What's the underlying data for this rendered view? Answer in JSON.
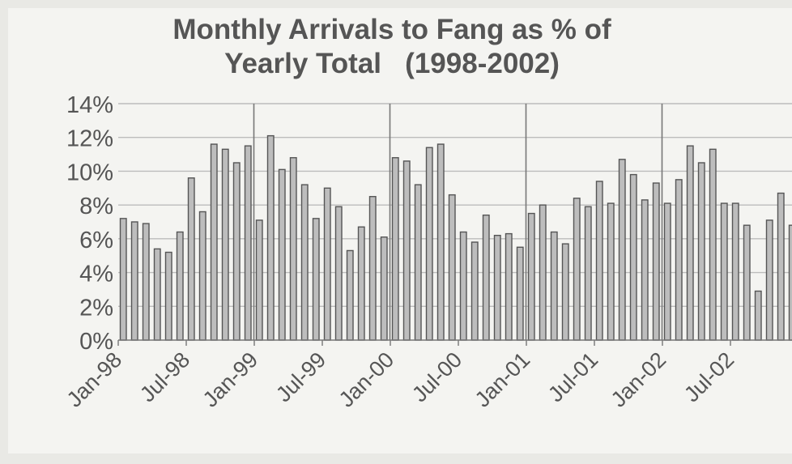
{
  "chart_data": {
    "type": "bar",
    "title_line1": "Monthly Arrivals to Fang as % of",
    "title_line2": "Yearly Total   (1998-2002)",
    "xlabel": "",
    "ylabel": "",
    "ylim": [
      0,
      14
    ],
    "yticks": [
      "0%",
      "2%",
      "4%",
      "6%",
      "8%",
      "10%",
      "12%",
      "14%"
    ],
    "ytick_values": [
      0,
      2,
      4,
      6,
      8,
      10,
      12,
      14
    ],
    "xtick_labels": [
      {
        "label": "Jan-98",
        "index": 0
      },
      {
        "label": "Jul-98",
        "index": 6
      },
      {
        "label": "Jan-99",
        "index": 12
      },
      {
        "label": "Jul-99",
        "index": 18
      },
      {
        "label": "Jan-00",
        "index": 24
      },
      {
        "label": "Jul-00",
        "index": 30
      },
      {
        "label": "Jan-01",
        "index": 36
      },
      {
        "label": "Jul-01",
        "index": 42
      },
      {
        "label": "Jan-02",
        "index": 48
      },
      {
        "label": "Jul-02",
        "index": 54
      }
    ],
    "year_boundaries": [
      12,
      24,
      36,
      48
    ],
    "categories": [
      "Jan-98",
      "Feb-98",
      "Mar-98",
      "Apr-98",
      "May-98",
      "Jun-98",
      "Jul-98",
      "Aug-98",
      "Sep-98",
      "Oct-98",
      "Nov-98",
      "Dec-98",
      "Jan-99",
      "Feb-99",
      "Mar-99",
      "Apr-99",
      "May-99",
      "Jun-99",
      "Jul-99",
      "Aug-99",
      "Sep-99",
      "Oct-99",
      "Nov-99",
      "Dec-99",
      "Jan-00",
      "Feb-00",
      "Mar-00",
      "Apr-00",
      "May-00",
      "Jun-00",
      "Jul-00",
      "Aug-00",
      "Sep-00",
      "Oct-00",
      "Nov-00",
      "Dec-00",
      "Jan-01",
      "Feb-01",
      "Mar-01",
      "Apr-01",
      "May-01",
      "Jun-01",
      "Jul-01",
      "Aug-01",
      "Sep-01",
      "Oct-01",
      "Nov-01",
      "Dec-01",
      "Jan-02",
      "Feb-02",
      "Mar-02",
      "Apr-02",
      "May-02",
      "Jun-02",
      "Jul-02",
      "Aug-02",
      "Sep-02",
      "Oct-02",
      "Nov-02",
      "Dec-02"
    ],
    "values": [
      7.2,
      7.0,
      6.9,
      5.4,
      5.2,
      6.4,
      9.6,
      7.6,
      11.6,
      11.3,
      10.5,
      11.5,
      7.1,
      12.1,
      10.1,
      10.8,
      9.2,
      7.2,
      9.0,
      7.9,
      5.3,
      6.7,
      8.5,
      6.1,
      10.8,
      10.6,
      9.2,
      11.4,
      11.6,
      8.6,
      6.4,
      5.8,
      7.4,
      6.2,
      6.3,
      5.5,
      7.5,
      8.0,
      6.4,
      5.7,
      8.4,
      7.9,
      9.4,
      8.1,
      10.7,
      9.8,
      8.3,
      9.3,
      8.1,
      9.5,
      11.5,
      10.5,
      11.3,
      8.1,
      8.1,
      6.8,
      2.9,
      7.1,
      8.7,
      6.8
    ],
    "grid": true,
    "legend": "none",
    "colors": {
      "bar_fill": "#bdbdbd",
      "bar_stroke": "#555555",
      "grid": "#bcbcbc",
      "text": "#555555",
      "divider": "#777777"
    }
  }
}
